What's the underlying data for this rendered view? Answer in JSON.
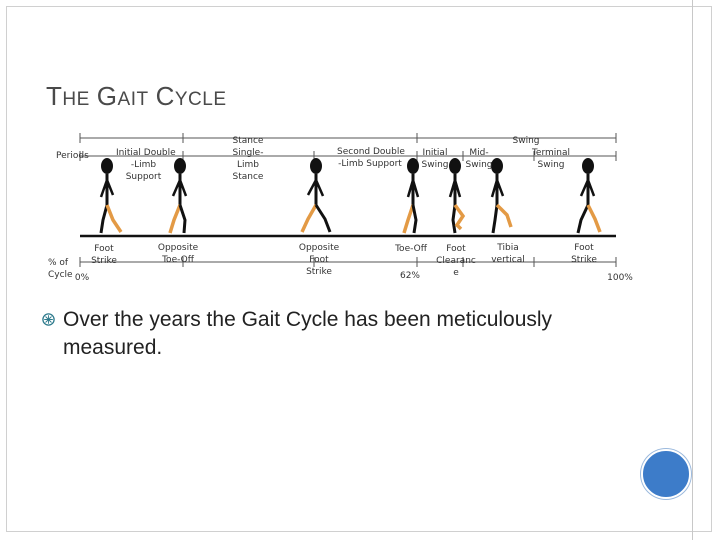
{
  "slide": {
    "title_parts": {
      "t": "T",
      "he": "HE",
      "g": "G",
      "ait": "AIT",
      "c": "C",
      "ycle": "YCLE"
    },
    "bullet_text": "Over the years the Gait Cycle has been meticulously measured."
  },
  "diagram": {
    "labels": {
      "periods": "Periods",
      "initial_double_limb_support": [
        "Initial Double",
        "-Limb",
        "Support"
      ],
      "stance": "Stance",
      "single_limb_stance": [
        "Single-",
        "Limb",
        "Stance"
      ],
      "second_double_limb_support": [
        "Second Double",
        "-Limb Support"
      ],
      "initial_swing": [
        "Initial",
        "Swing"
      ],
      "swing": "Swing",
      "mid_swing": [
        "Mid-",
        "Swing"
      ],
      "terminal_swing": [
        "Terminal",
        "Swing"
      ],
      "pct_of_cycle": [
        "% of",
        "Cycle"
      ],
      "pct_0": "0%",
      "foot_strike": [
        "Foot",
        "Strike"
      ],
      "opposite_toe_off": [
        "Opposite",
        "Toe-Off"
      ],
      "opposite_foot_strike": [
        "Opposite",
        "Foot",
        "Strike"
      ],
      "toe_off": "Toe-Off",
      "pct_62": "62%",
      "foot_clearance": [
        "Foot",
        "Clearanc",
        "e"
      ],
      "tibia_vertical": [
        "Tibia",
        "vertical"
      ],
      "foot_strike_end": [
        "Foot",
        "Strike"
      ],
      "pct_100": "100%"
    },
    "colors": {
      "leg_highlight": "#e39a45",
      "body": "#111111"
    }
  }
}
